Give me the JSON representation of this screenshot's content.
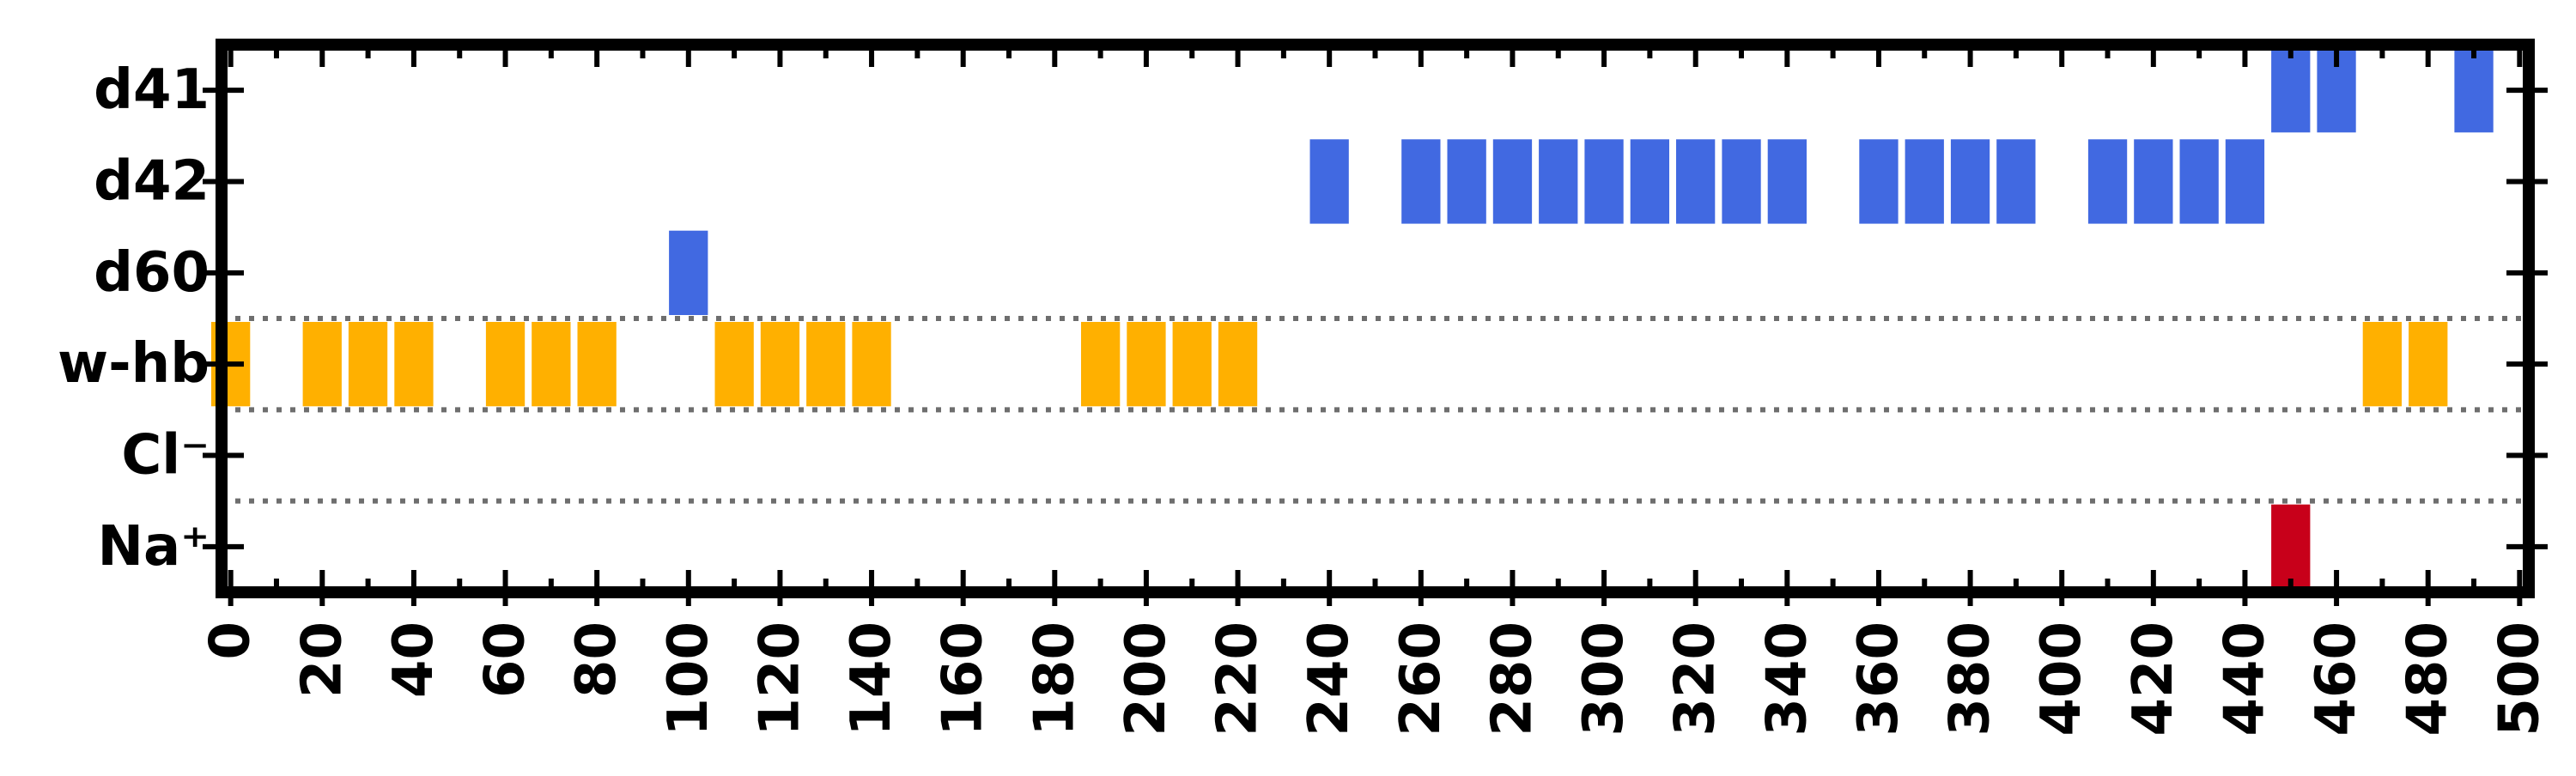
{
  "chart_data": {
    "type": "bar",
    "orientation": "event-raster",
    "title": "",
    "xlabel": "",
    "ylabel": "",
    "xlim": [
      -2,
      502
    ],
    "x_ticks": [
      0,
      20,
      40,
      60,
      80,
      100,
      120,
      140,
      160,
      180,
      200,
      220,
      240,
      260,
      280,
      300,
      320,
      340,
      360,
      380,
      400,
      420,
      440,
      460,
      480,
      500
    ],
    "x_tick_labels": [
      "0",
      "20",
      "40",
      "60",
      "80",
      "100",
      "120",
      "140",
      "160",
      "180",
      "200",
      "220",
      "240",
      "260",
      "280",
      "300",
      "320",
      "340",
      "360",
      "380",
      "400",
      "420",
      "440",
      "460",
      "480",
      "500"
    ],
    "x_minor_ticks": [
      10,
      30,
      50,
      70,
      90,
      110,
      130,
      150,
      170,
      190,
      210,
      230,
      250,
      270,
      290,
      310,
      330,
      350,
      370,
      390,
      410,
      430,
      450,
      470,
      490
    ],
    "bin_width": 10,
    "categories": [
      "d41",
      "d42",
      "d60",
      "w-hb",
      "Cl⁻",
      "Na⁺"
    ],
    "grid": "dotted separators between groups",
    "separators_between": [
      [
        2,
        3
      ],
      [
        3,
        4
      ],
      [
        4,
        5
      ]
    ],
    "series": [
      {
        "category": "d41",
        "color": "#4169e1",
        "x": [
          450,
          460,
          490
        ]
      },
      {
        "category": "d42",
        "color": "#4169e1",
        "x": [
          240,
          260,
          270,
          280,
          290,
          300,
          310,
          320,
          330,
          340,
          360,
          370,
          380,
          390,
          410,
          420,
          430,
          440
        ]
      },
      {
        "category": "d60",
        "color": "#4169e1",
        "x": [
          100
        ]
      },
      {
        "category": "w-hb",
        "color": "#ffb000",
        "x": [
          0,
          20,
          30,
          40,
          60,
          70,
          80,
          110,
          120,
          130,
          140,
          190,
          200,
          210,
          220,
          470,
          480
        ]
      },
      {
        "category": "Cl⁻",
        "color": "#c8001a",
        "x": []
      },
      {
        "category": "Na⁺",
        "color": "#c8001a",
        "x": [
          450
        ]
      }
    ]
  }
}
